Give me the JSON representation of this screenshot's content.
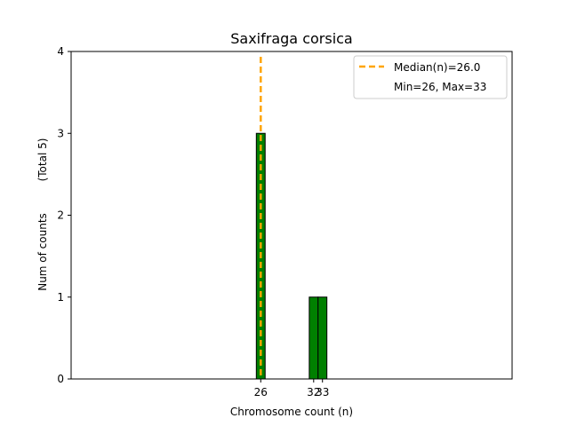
{
  "chart_data": {
    "type": "bar",
    "title": "Saxifraga corsica",
    "xlabel": "Chromosome count (n)",
    "ylabel": "Num of counts",
    "ylabel_total": "(Total 5)",
    "xlim": [
      4.5,
      54.5
    ],
    "ylim": [
      0,
      4
    ],
    "yticks": [
      0,
      1,
      2,
      3,
      4
    ],
    "xticks": [
      26,
      32,
      33
    ],
    "bars": [
      {
        "x": 26,
        "count": 3
      },
      {
        "x": 32,
        "count": 1
      },
      {
        "x": 33,
        "count": 1
      }
    ],
    "bar_color": "#008000",
    "bar_edge_color": "#000000",
    "median": 26.0,
    "median_color": "#FFA500",
    "legend": {
      "position": "top-right",
      "entries": [
        "Median(n)=26.0",
        "Min=26, Max=33"
      ]
    },
    "grid": false
  }
}
